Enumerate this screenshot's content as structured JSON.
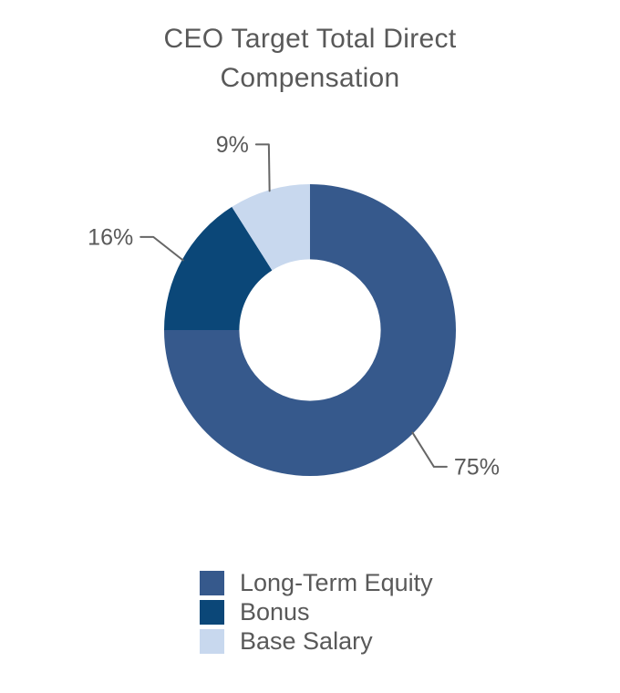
{
  "chart_data": {
    "type": "pie",
    "subtype": "donut",
    "title": "CEO Target Total Direct Compensation",
    "title_lines": [
      "CEO Target Total Direct",
      "Compensation"
    ],
    "direction": "clockwise",
    "start_angle_deg": 0,
    "inner_radius_ratio": 0.485,
    "legend_position": "bottom",
    "slices": [
      {
        "label": "Long-Term Equity",
        "value": 75,
        "pct_label": "75%",
        "color": "#36598C"
      },
      {
        "label": "Bonus",
        "value": 16,
        "pct_label": "16%",
        "color": "#0B4778"
      },
      {
        "label": "Base Salary",
        "value": 9,
        "pct_label": "9%",
        "color": "#C8D8EE"
      }
    ],
    "colors": {
      "title_text": "#595959",
      "label_text": "#595959",
      "legend_text": "#595959",
      "connector_line": "#666666",
      "background": "#FFFFFF"
    }
  }
}
